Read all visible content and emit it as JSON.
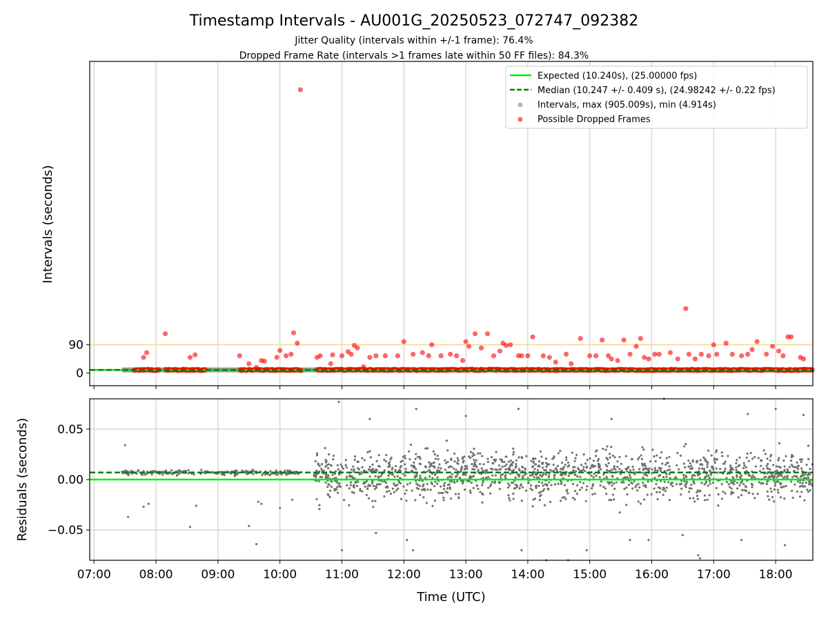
{
  "chart_data": [
    {
      "panel": "intervals",
      "type": "scatter",
      "title": "Timestamp Intervals - AU001G_20250523_072747_092382",
      "subtitle_lines": [
        "Jitter Quality (intervals within +/-1 frame): 76.4%",
        "Dropped Frame Rate (intervals >1 frames late within 50 FF files): 84.3%"
      ],
      "xlabel": "",
      "ylabel": "Intervals (seconds)",
      "x_unit": "hours UTC",
      "xlim": [
        6.93,
        18.6
      ],
      "ylim": [
        -40,
        990
      ],
      "yticks": [
        0,
        90
      ],
      "ytick_labels": [
        "0",
        "90"
      ],
      "xtick_labels": [],
      "threshold_line": {
        "value": 90,
        "color": "#f5d98e"
      },
      "legend_placement": "top-right",
      "legend": [
        {
          "label": "Expected (10.240s), (25.00000 fps)",
          "kind": "line",
          "color": "#00ee00"
        },
        {
          "label": "Median (10.247 +/- 0.409 s), (24.98242 +/- 0.22 fps)",
          "kind": "dashed",
          "color": "#007f00"
        },
        {
          "label": "Intervals, max (905.009s), min (4.914s)",
          "kind": "dot",
          "color": "#808080"
        },
        {
          "label": "Possible Dropped Frames",
          "kind": "dot",
          "color": "#ff0000"
        }
      ],
      "series": [
        {
          "name": "Intervals, max (905.009s), min (4.914s)",
          "color": "#808080",
          "x_range": [
            7.45,
            18.6
          ],
          "value": 10.24
        },
        {
          "name": "Possible Dropped Frames",
          "color": "#ff0000",
          "band_segments": [
            [
              7.65,
              8.05
            ],
            [
              8.15,
              8.8
            ],
            [
              9.35,
              10.35
            ],
            [
              10.6,
              18.6
            ]
          ],
          "band_value": 10.24,
          "points": [
            [
              7.8,
              50
            ],
            [
              7.85,
              65
            ],
            [
              8.15,
              125
            ],
            [
              8.55,
              50
            ],
            [
              8.63,
              58
            ],
            [
              9.35,
              55
            ],
            [
              9.5,
              30
            ],
            [
              9.62,
              18
            ],
            [
              9.7,
              40
            ],
            [
              9.75,
              38
            ],
            [
              9.95,
              50
            ],
            [
              10.0,
              72
            ],
            [
              10.1,
              55
            ],
            [
              10.18,
              60
            ],
            [
              10.22,
              128
            ],
            [
              10.28,
              95
            ],
            [
              10.33,
              900
            ],
            [
              10.6,
              50
            ],
            [
              10.65,
              55
            ],
            [
              10.82,
              30
            ],
            [
              10.85,
              58
            ],
            [
              11.0,
              55
            ],
            [
              11.1,
              68
            ],
            [
              11.15,
              60
            ],
            [
              11.2,
              88
            ],
            [
              11.25,
              80
            ],
            [
              11.35,
              20
            ],
            [
              11.45,
              50
            ],
            [
              11.55,
              55
            ],
            [
              11.7,
              55
            ],
            [
              11.9,
              55
            ],
            [
              12.0,
              100
            ],
            [
              12.15,
              60
            ],
            [
              12.3,
              65
            ],
            [
              12.4,
              55
            ],
            [
              12.45,
              90
            ],
            [
              12.6,
              55
            ],
            [
              12.75,
              60
            ],
            [
              12.85,
              55
            ],
            [
              12.95,
              40
            ],
            [
              13.0,
              100
            ],
            [
              13.05,
              85
            ],
            [
              13.15,
              125
            ],
            [
              13.25,
              80
            ],
            [
              13.35,
              125
            ],
            [
              13.45,
              55
            ],
            [
              13.55,
              70
            ],
            [
              13.6,
              95
            ],
            [
              13.65,
              88
            ],
            [
              13.72,
              90
            ],
            [
              13.85,
              55
            ],
            [
              13.9,
              55
            ],
            [
              14.0,
              55
            ],
            [
              14.08,
              115
            ],
            [
              14.25,
              55
            ],
            [
              14.35,
              50
            ],
            [
              14.45,
              35
            ],
            [
              14.62,
              60
            ],
            [
              14.7,
              30
            ],
            [
              14.85,
              110
            ],
            [
              15.0,
              55
            ],
            [
              15.1,
              55
            ],
            [
              15.2,
              105
            ],
            [
              15.3,
              55
            ],
            [
              15.35,
              45
            ],
            [
              15.45,
              40
            ],
            [
              15.55,
              105
            ],
            [
              15.65,
              60
            ],
            [
              15.75,
              85
            ],
            [
              15.82,
              110
            ],
            [
              15.88,
              50
            ],
            [
              15.95,
              45
            ],
            [
              16.05,
              60
            ],
            [
              16.12,
              60
            ],
            [
              16.3,
              65
            ],
            [
              16.42,
              45
            ],
            [
              16.55,
              205
            ],
            [
              16.6,
              60
            ],
            [
              16.7,
              45
            ],
            [
              16.8,
              60
            ],
            [
              16.92,
              55
            ],
            [
              17.0,
              90
            ],
            [
              17.05,
              60
            ],
            [
              17.2,
              95
            ],
            [
              17.3,
              60
            ],
            [
              17.45,
              55
            ],
            [
              17.55,
              60
            ],
            [
              17.62,
              75
            ],
            [
              17.7,
              100
            ],
            [
              17.85,
              60
            ],
            [
              17.95,
              85
            ],
            [
              18.05,
              70
            ],
            [
              18.12,
              55
            ],
            [
              18.2,
              115
            ],
            [
              18.25,
              115
            ],
            [
              18.4,
              50
            ],
            [
              18.45,
              45
            ]
          ]
        },
        {
          "name": "Expected (10.240s), (25.00000 fps)",
          "color": "#00ee00",
          "value": 10.24,
          "x_range": [
            6.93,
            18.6
          ]
        },
        {
          "name": "Median (10.247 +/- 0.409 s), (24.98242 +/- 0.22 fps)",
          "color": "#007f00",
          "value": 10.247,
          "x_range": [
            6.93,
            18.6
          ]
        }
      ]
    },
    {
      "panel": "residuals",
      "type": "scatter",
      "title": "",
      "xlabel": "Time (UTC)",
      "ylabel": "Residuals (seconds)",
      "x_unit": "hours UTC",
      "xlim": [
        6.93,
        18.6
      ],
      "ylim": [
        -0.08,
        0.08
      ],
      "yticks": [
        -0.05,
        0,
        0.05
      ],
      "ytick_labels": [
        "−0.05",
        "0.00",
        "0.05"
      ],
      "xticks": [
        7,
        8,
        9,
        10,
        11,
        12,
        13,
        14,
        15,
        16,
        17,
        18
      ],
      "xtick_labels": [
        "07:00",
        "08:00",
        "09:00",
        "10:00",
        "11:00",
        "12:00",
        "13:00",
        "14:00",
        "15:00",
        "16:00",
        "17:00",
        "18:00"
      ],
      "series": [
        {
          "name": "Expected (10.240s), (25.00000 fps)",
          "color": "#00ee00",
          "value": 0.0
        },
        {
          "name": "Median (10.247 +/- 0.409 s), (24.98242 +/- 0.22 fps)",
          "color": "#007f00",
          "value": 0.007
        },
        {
          "name": "Intervals, max (905.009s), min (4.914s)",
          "color": "#707070",
          "segments": [
            {
              "x_range": [
                7.45,
                10.35
              ],
              "center": 0.007,
              "spread": 0.002,
              "count": 240
            },
            {
              "x_range": [
                10.55,
                18.6
              ],
              "center": 0.005,
              "spread": 0.02,
              "count": 1500
            }
          ],
          "outliers": [
            [
              7.5,
              0.034
            ],
            [
              7.55,
              -0.037
            ],
            [
              7.8,
              -0.027
            ],
            [
              7.88,
              -0.024
            ],
            [
              8.55,
              -0.047
            ],
            [
              8.65,
              -0.026
            ],
            [
              9.5,
              -0.046
            ],
            [
              9.62,
              -0.064
            ],
            [
              9.65,
              -0.022
            ],
            [
              9.7,
              -0.024
            ],
            [
              10.0,
              -0.028
            ],
            [
              10.2,
              -0.02
            ],
            [
              10.95,
              0.077
            ],
            [
              11.0,
              -0.07
            ],
            [
              11.45,
              0.06
            ],
            [
              11.55,
              -0.053
            ],
            [
              12.05,
              -0.06
            ],
            [
              12.2,
              0.07
            ],
            [
              12.15,
              -0.07
            ],
            [
              13.0,
              0.063
            ],
            [
              13.85,
              0.07
            ],
            [
              13.9,
              -0.07
            ],
            [
              14.3,
              -0.08
            ],
            [
              14.65,
              -0.08
            ],
            [
              14.95,
              -0.07
            ],
            [
              15.35,
              0.06
            ],
            [
              15.65,
              -0.06
            ],
            [
              15.95,
              -0.06
            ],
            [
              16.2,
              0.08
            ],
            [
              16.5,
              -0.055
            ],
            [
              16.75,
              -0.075
            ],
            [
              16.78,
              -0.078
            ],
            [
              17.45,
              -0.06
            ],
            [
              17.55,
              0.065
            ],
            [
              18.0,
              0.07
            ],
            [
              18.15,
              -0.065
            ],
            [
              18.45,
              0.064
            ]
          ]
        }
      ]
    }
  ]
}
